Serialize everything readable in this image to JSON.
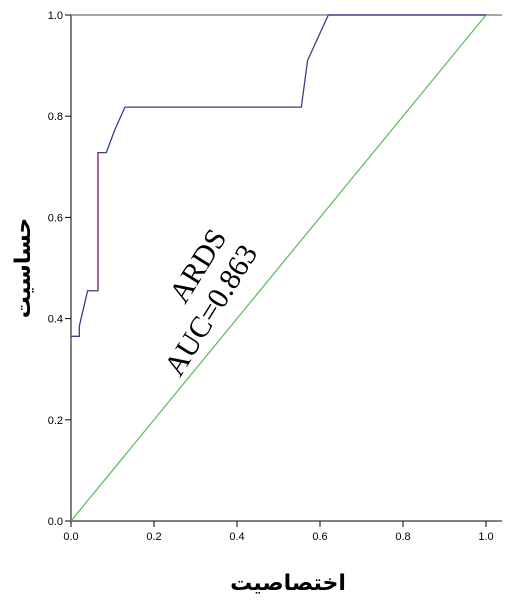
{
  "chart_data": {
    "type": "line",
    "xlabel": "اختصاصیت",
    "ylabel": "حساسیت",
    "xlim": [
      0,
      1
    ],
    "ylim": [
      0,
      1
    ],
    "xticks": [
      "0.0",
      "0.2",
      "0.4",
      "0.6",
      "0.8",
      "1.0"
    ],
    "yticks": [
      "0.0",
      "0.2",
      "0.4",
      "0.6",
      "0.8",
      "1.0"
    ],
    "annotation": {
      "line1": "ARDS",
      "line2": "AUC=0.863"
    },
    "series": [
      {
        "color": "#3b3b8e",
        "accent_color": "#b0306a",
        "points": [
          [
            0.0,
            0.365
          ],
          [
            0.02,
            0.365
          ],
          [
            0.02,
            0.385
          ],
          [
            0.04,
            0.455
          ],
          [
            0.065,
            0.455
          ],
          [
            0.065,
            0.728
          ],
          [
            0.085,
            0.728
          ],
          [
            0.105,
            0.772
          ],
          [
            0.13,
            0.818
          ],
          [
            0.555,
            0.818
          ],
          [
            0.57,
            0.91
          ],
          [
            0.62,
            1.0
          ],
          [
            1.0,
            1.0
          ]
        ]
      },
      {
        "color": "#5cb85c",
        "points": [
          [
            0,
            0
          ],
          [
            1,
            1
          ]
        ]
      }
    ],
    "grid": false
  }
}
